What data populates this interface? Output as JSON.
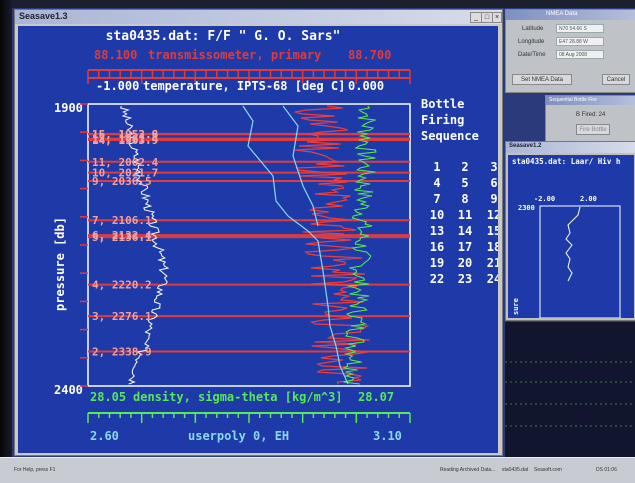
{
  "main_window": {
    "title": "Seasave1.3",
    "plot": {
      "title": "sta0435.dat: F/F \" G. O. Sars\"",
      "top_axis_2": {
        "label": "transmissometer, primary",
        "min": "88.100",
        "max": "88.700",
        "color": "#e03a3a"
      },
      "top_axis_1": {
        "label": "temperature, IPTS-68 [deg C]",
        "min": "-1.000",
        "max": "0.000",
        "color": "#ffffff"
      },
      "left_axis": {
        "label": "pressure [db]",
        "min": "1900",
        "max": "2400"
      },
      "bottom_axis_1": {
        "label": "density, sigma-theta [kg/m^3]",
        "min": "28.05",
        "max": "28.07",
        "color": "#58e858"
      },
      "bottom_axis_2": {
        "label": "userpoly 0, EH",
        "min": "2.60",
        "max": "3.10",
        "color": "#8ad8f0"
      },
      "bottle_sequence": {
        "title_lines": [
          "Bottle",
          "Firing",
          "Sequence"
        ],
        "rows": [
          [
            "1",
            "2",
            "3"
          ],
          [
            "4",
            "5",
            "6"
          ],
          [
            "7",
            "8",
            "9"
          ],
          [
            "10",
            "11",
            "12"
          ],
          [
            "13",
            "14",
            "15"
          ],
          [
            "16",
            "17",
            "18"
          ],
          [
            "19",
            "20",
            "21"
          ],
          [
            "22",
            "23",
            "24"
          ]
        ]
      },
      "bottle_labels": [
        "16, 1952.9",
        "15, 1953.6",
        "14, 1963.9",
        "12, 1961.4",
        "11, 2002.4",
        "10, 2021.7",
        "9, 2036.5",
        "7, 2106.1",
        "6, 2132.4",
        "5, 2136.1",
        "4, 2220.2",
        "3, 2276.1",
        "2, 2338.9"
      ]
    }
  },
  "data_pane": {
    "title": "NMEA Data",
    "fields": [
      {
        "label": "Latitude",
        "value": "N70 54.66 S"
      },
      {
        "label": "Longitude",
        "value": "E47 28.88 W"
      },
      {
        "label": "Date/Time",
        "value": "08 Aug 2008"
      }
    ],
    "buttons": [
      "Set NMEA Data",
      "Cancel"
    ]
  },
  "seq_pane": {
    "title": "Sequential Bottle Fire",
    "label": "B Fired: 24",
    "button": "Fire Bottle"
  },
  "small_window": {
    "title": "Seasave1.2",
    "plot_title": "sta0435.dat: Laar/ Hiv h",
    "axis_min": "-2.00",
    "axis_max": "2.00",
    "depth_label": "2300",
    "side_label": "sure"
  },
  "taskbar": {
    "help": "For Help, press F1",
    "items": [
      "Reading Archived Data...",
      "sta0435.dat",
      "Seasoft.com",
      "DS 01:06"
    ]
  },
  "colors": {
    "plot_bg": "#1e3aa8",
    "grid": "#e23b3b",
    "title": "#ffffff",
    "bottle": "#f0a0a0"
  }
}
